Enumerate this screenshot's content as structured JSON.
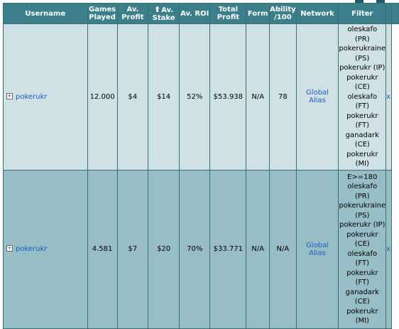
{
  "columns": {
    "username": "Username",
    "games_played_1": "Games",
    "games_played_2": "Played",
    "av_profit_1": "Av.",
    "av_profit_2": "Profit",
    "av_stake_1": "Av.",
    "av_stake_2": "Stake",
    "av_roi": "Av. ROI",
    "total_profit_1": "Total",
    "total_profit_2": "Profit",
    "form": "Form",
    "ability_1": "Ability",
    "ability_2": "/100",
    "network": "Network",
    "filter": "Filter"
  },
  "rows": [
    {
      "username": "pokerukr",
      "games": "12.000",
      "av_profit": "$4",
      "av_stake": "$14",
      "av_roi": "52%",
      "total_profit": "$53.938",
      "form": "N/A",
      "ability": "78",
      "network": "Global Alias",
      "filter_lines": [
        "oleskafo",
        "(PR)",
        "pokerukraine",
        "(PS)",
        "pokerukr (IP)",
        "pokerukr",
        "(CE)",
        "oleskafo",
        "(FT)",
        "pokerukr",
        "(FT)",
        "ganadark",
        "(CE)",
        "pokerukr",
        "(MI)"
      ],
      "remove": "x"
    },
    {
      "username": "pokerukr",
      "games": "4.581",
      "av_profit": "$7",
      "av_stake": "$20",
      "av_roi": "70%",
      "total_profit": "$33.771",
      "form": "N/A",
      "ability": "N/A",
      "network": "Global Alias",
      "filter_lines": [
        "E>=180",
        "oleskafo",
        "(PR)",
        "pokerukraine",
        "(PS)",
        "pokerukr (IP)",
        "pokerukr",
        "(CE)",
        "oleskafo",
        "(FT)",
        "pokerukr",
        "(FT)",
        "ganadark",
        "(CE)",
        "pokerukr",
        "(MI)"
      ],
      "remove": "x"
    }
  ],
  "expand_glyph": "+",
  "sort_glyph": "⬆"
}
